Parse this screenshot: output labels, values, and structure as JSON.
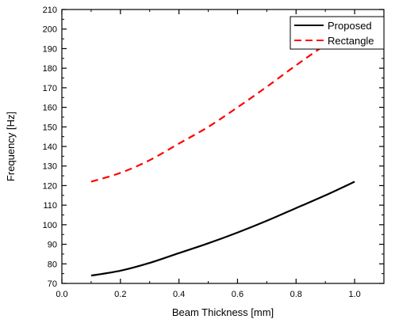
{
  "chart_data": {
    "type": "line",
    "title": "",
    "xlabel": "Beam Thickness [mm]",
    "ylabel": "Frequency [Hz]",
    "xlim": [
      0.0,
      1.1
    ],
    "ylim": [
      70,
      210
    ],
    "x_ticks": [
      0.0,
      0.2,
      0.4,
      0.6,
      0.8,
      1.0
    ],
    "x_tick_labels": [
      "0.0",
      "0.2",
      "0.4",
      "0.6",
      "0.8",
      "1.0"
    ],
    "y_ticks": [
      70,
      80,
      90,
      100,
      110,
      120,
      130,
      140,
      150,
      160,
      170,
      180,
      190,
      200,
      210
    ],
    "y_tick_labels": [
      "70",
      "80",
      "90",
      "100",
      "110",
      "120",
      "130",
      "140",
      "150",
      "160",
      "170",
      "180",
      "190",
      "200",
      "210"
    ],
    "grid": false,
    "legend_position": "top-right",
    "series": [
      {
        "name": "Proposed",
        "color": "#000000",
        "style": "solid",
        "x": [
          0.1,
          0.2,
          0.3,
          0.4,
          0.5,
          0.6,
          0.7,
          0.8,
          0.9,
          1.0
        ],
        "y": [
          74,
          76.5,
          80.5,
          85.5,
          90.5,
          96,
          102,
          108.5,
          115,
          122
        ]
      },
      {
        "name": "Rectangle",
        "color": "#ff0000",
        "style": "dashed",
        "x": [
          0.1,
          0.2,
          0.3,
          0.4,
          0.5,
          0.6,
          0.7,
          0.8,
          0.9
        ],
        "y": [
          122,
          126.5,
          133,
          141.5,
          150,
          160,
          170.5,
          181.5,
          192
        ]
      }
    ]
  }
}
